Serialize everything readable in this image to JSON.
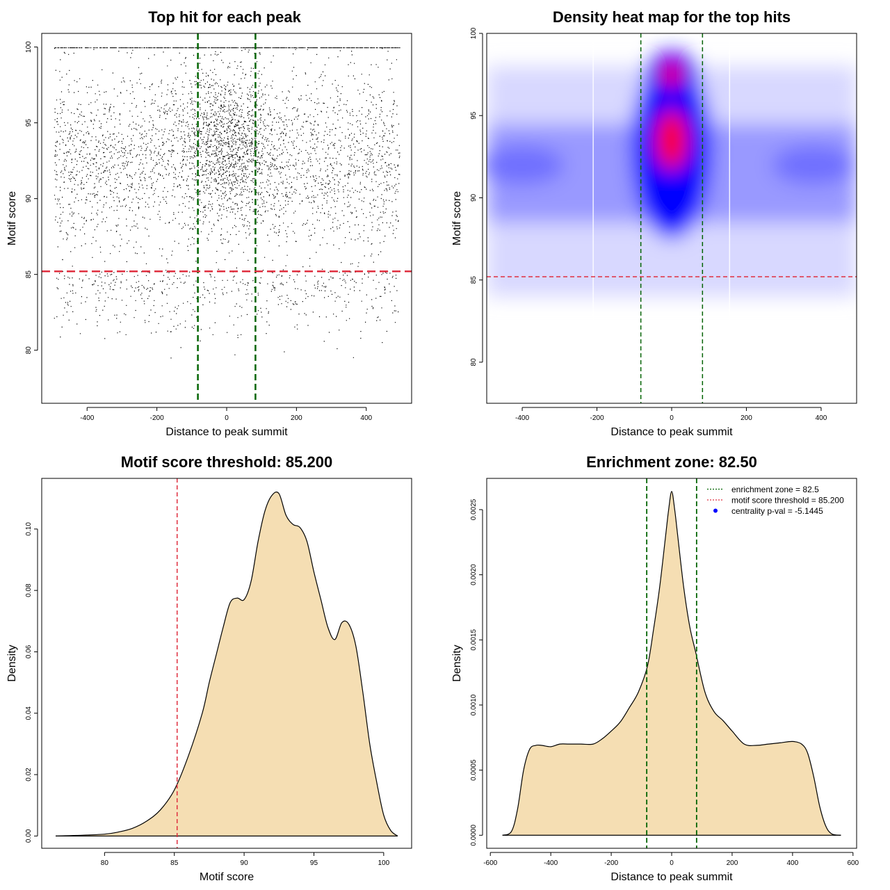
{
  "chart_data": [
    {
      "type": "scatter",
      "title": "Top hit for each peak",
      "xlabel": "Distance to peak summit",
      "ylabel": "Motif score",
      "xlim": [
        -530,
        530
      ],
      "ylim": [
        76.5,
        100.9
      ],
      "xticks": [
        -400,
        -200,
        0,
        200,
        400
      ],
      "yticks": [
        80,
        85,
        90,
        95,
        100
      ],
      "points_note": "dense cloud of several thousand points, x uniform in [-495, 495], y mostly 85-100, concentrated near x=0 and y 89-97",
      "vlines": [
        -82.5,
        82.5
      ],
      "hline": 85.2,
      "colors": {
        "points": "#000000",
        "vlines": "#006400",
        "hline": "#DF2F3F"
      }
    },
    {
      "type": "heatmap",
      "title": "Density heat map for the top hits",
      "xlabel": "Distance to peak summit",
      "ylabel": "Motif score",
      "xlim": [
        -495,
        495
      ],
      "ylim": [
        77.5,
        100
      ],
      "xticks": [
        -400,
        -200,
        0,
        200,
        400
      ],
      "yticks": [
        80,
        85,
        90,
        95,
        100
      ],
      "density_peaks": [
        {
          "x": 0,
          "y": 93.5,
          "level": "high"
        },
        {
          "x": 0,
          "y": 97.5,
          "level": "high"
        },
        {
          "x": -400,
          "y": 92,
          "level": "medium"
        },
        {
          "x": 380,
          "y": 92,
          "level": "medium"
        }
      ],
      "vlines": [
        -82.5,
        82.5
      ],
      "hline": 85.2,
      "colors": {
        "low": "#FFFFFF",
        "mid": "#0000FF",
        "high": "#FF0000",
        "vlines": "#006400",
        "hline": "#DF2F3F"
      }
    },
    {
      "type": "area",
      "title": "Motif score threshold: 85.200",
      "xlabel": "Motif score",
      "ylabel": "Density",
      "xlim": [
        75.5,
        102
      ],
      "ylim": [
        -0.004,
        0.1165
      ],
      "xticks": [
        80,
        85,
        90,
        95,
        100
      ],
      "yticks": [
        0.0,
        0.02,
        0.04,
        0.06,
        0.08,
        0.1
      ],
      "ytick_labels": [
        "0.00",
        "0.02",
        "0.04",
        "0.06",
        "0.08",
        "0.10"
      ],
      "x": [
        76.5,
        78,
        80,
        81,
        82,
        83,
        84,
        85,
        86,
        87,
        87.5,
        88,
        88.5,
        89,
        89.5,
        90,
        90.5,
        91,
        91.5,
        92,
        92.5,
        93,
        93.5,
        94,
        94.5,
        95,
        95.5,
        96,
        96.5,
        97,
        97.5,
        98,
        98.5,
        99,
        99.5,
        100,
        100.5,
        101
      ],
      "y": [
        0.0,
        0.0002,
        0.0006,
        0.0013,
        0.0025,
        0.0048,
        0.0085,
        0.015,
        0.026,
        0.04,
        0.05,
        0.059,
        0.068,
        0.076,
        0.0775,
        0.077,
        0.083,
        0.096,
        0.106,
        0.111,
        0.1115,
        0.1045,
        0.1015,
        0.1005,
        0.096,
        0.086,
        0.077,
        0.068,
        0.064,
        0.0695,
        0.069,
        0.062,
        0.047,
        0.03,
        0.0175,
        0.0068,
        0.0018,
        0.0
      ],
      "vline": 85.2,
      "colors": {
        "fill": "#F5DEB3",
        "line": "#000000",
        "vline": "#DF2F3F"
      }
    },
    {
      "type": "area",
      "title": "Enrichment zone: 82.50",
      "xlabel": "Distance to peak summit",
      "ylabel": "Density",
      "xlim": [
        -612,
        612
      ],
      "ylim": [
        -0.0001,
        0.00274
      ],
      "xticks": [
        -600,
        -400,
        -200,
        0,
        200,
        400,
        600
      ],
      "yticks": [
        0.0,
        0.0005,
        0.001,
        0.0015,
        0.002,
        0.0025
      ],
      "ytick_labels": [
        "0.0000",
        "0.0005",
        "0.0010",
        "0.0015",
        "0.0020",
        "0.0025"
      ],
      "x": [
        -560,
        -530,
        -510,
        -490,
        -470,
        -450,
        -430,
        -400,
        -370,
        -340,
        -300,
        -260,
        -230,
        -200,
        -170,
        -140,
        -110,
        -80,
        -60,
        -40,
        -20,
        -10,
        0,
        10,
        20,
        40,
        60,
        80,
        110,
        140,
        170,
        200,
        240,
        280,
        320,
        360,
        400,
        430,
        450,
        470,
        490,
        510,
        530,
        560
      ],
      "y": [
        0.0,
        3e-05,
        0.0002,
        0.0005,
        0.00066,
        0.00069,
        0.00069,
        0.00068,
        0.0007,
        0.0007,
        0.0007,
        0.0007,
        0.00074,
        0.0008,
        0.00087,
        0.00098,
        0.0011,
        0.0013,
        0.00158,
        0.0019,
        0.0023,
        0.0025,
        0.00264,
        0.0025,
        0.0023,
        0.0019,
        0.0016,
        0.0014,
        0.0011,
        0.00095,
        0.00088,
        0.0008,
        0.0007,
        0.00069,
        0.0007,
        0.00071,
        0.00072,
        0.0007,
        0.00063,
        0.00045,
        0.00022,
        7e-05,
        1e-05,
        0.0
      ],
      "vlines": [
        -82.5,
        82.5
      ],
      "legend": [
        {
          "label": "enrichment zone = 82.5",
          "style": "dotted",
          "color": "#006400"
        },
        {
          "label": "motif score threshold = 85.200",
          "style": "dotted",
          "color": "#DF2F3F"
        },
        {
          "label": "centrality p-val = -5.1445",
          "style": "point",
          "color": "#0000FF"
        }
      ],
      "legend_position": "top-right",
      "colors": {
        "fill": "#F5DEB3",
        "line": "#000000",
        "vlines": "#006400"
      }
    }
  ]
}
